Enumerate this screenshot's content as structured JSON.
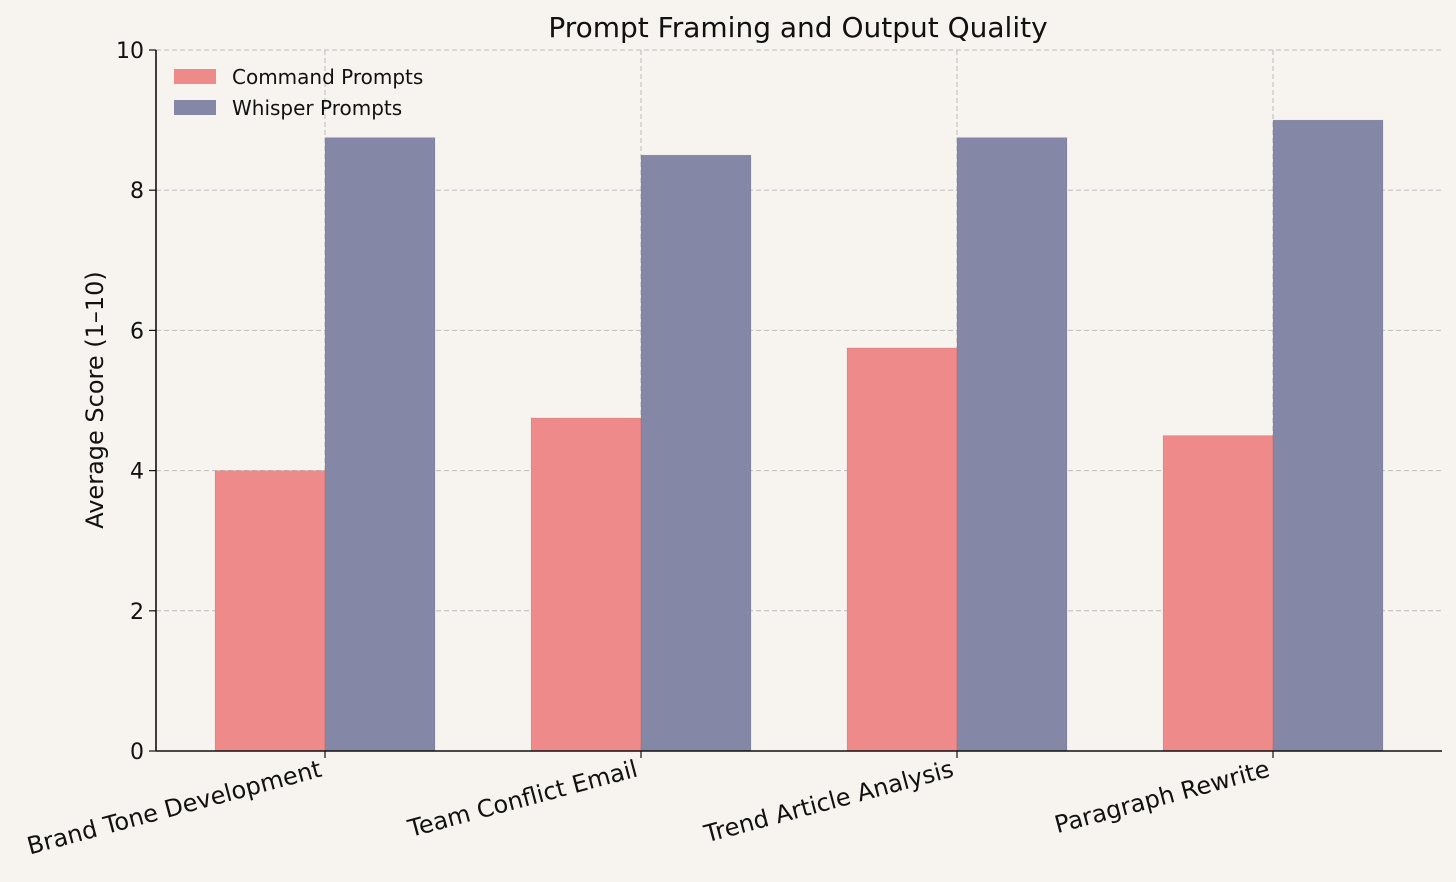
{
  "chart_data": {
    "type": "bar",
    "title": "Prompt Framing and Output Quality",
    "xlabel": "",
    "ylabel": "Average Score (1–10)",
    "categories": [
      "Brand Tone Development",
      "Team Conflict Email",
      "Trend Article Analysis",
      "Paragraph Rewrite"
    ],
    "series": [
      {
        "name": "Command Prompts",
        "values": [
          4.0,
          4.75,
          5.75,
          4.5
        ],
        "color": "#ee8a8a"
      },
      {
        "name": "Whisper Prompts",
        "values": [
          8.75,
          8.5,
          8.75,
          9.0
        ],
        "color": "#8587a6"
      }
    ],
    "ylim": [
      0,
      10
    ],
    "yticks": [
      "0",
      "2",
      "4",
      "6",
      "8",
      "10"
    ],
    "grid": true,
    "legend_position": "top-left",
    "background": "#f7f3ef"
  }
}
